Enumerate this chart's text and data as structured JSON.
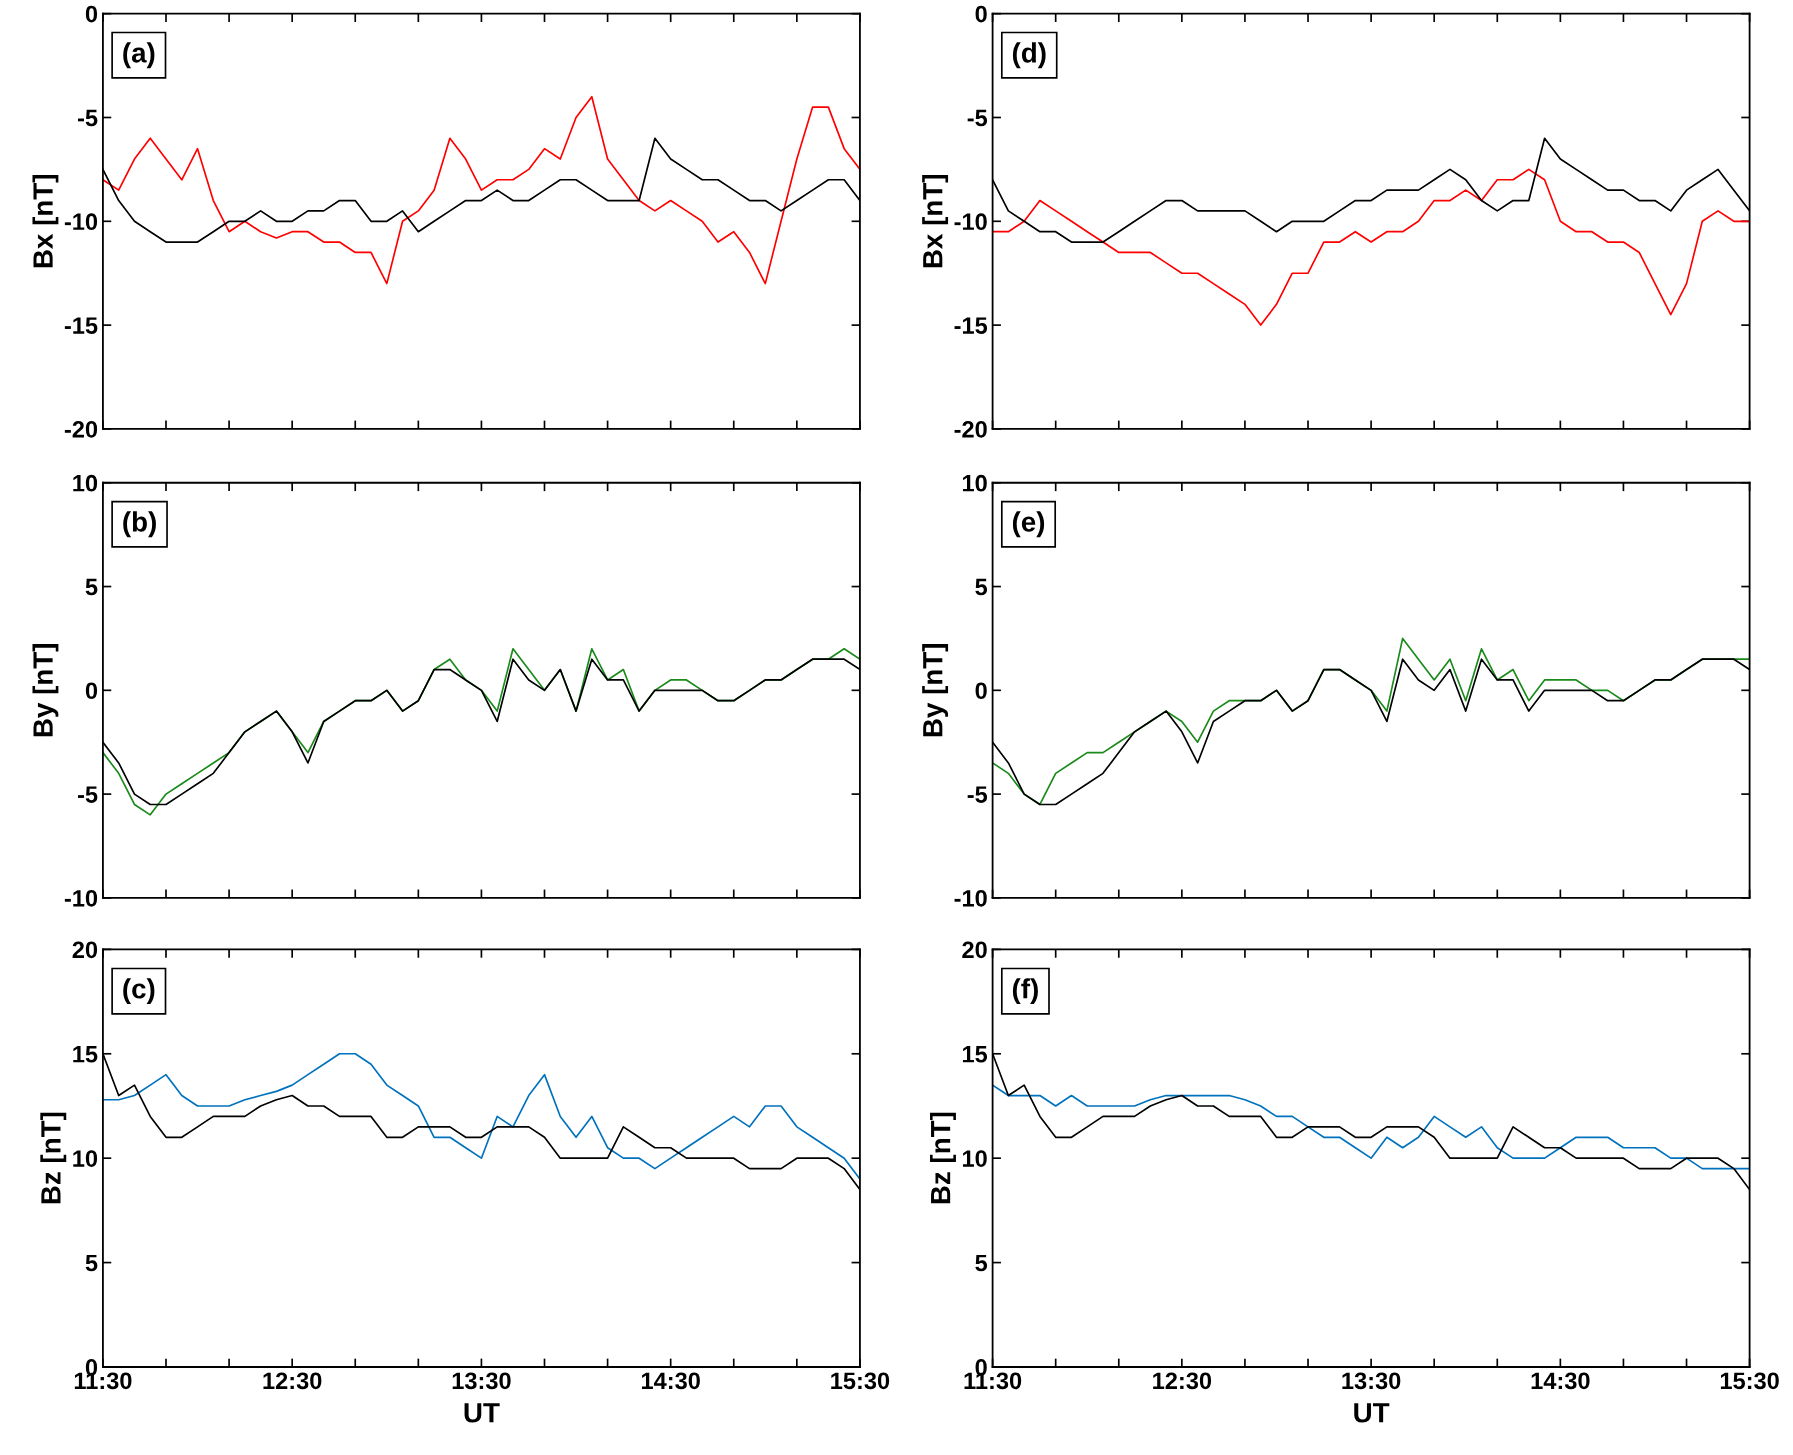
{
  "chart_data": [
    {
      "type": "line",
      "annotations": [
        "(a)"
      ],
      "ylabel": "Bx [nT]",
      "ylim": [
        -20,
        0
      ],
      "yticks": [
        -20,
        -15,
        -10,
        -5,
        0
      ],
      "xlim": [
        11.5,
        15.5
      ],
      "xticks": [
        {
          "value": 11.5,
          "label": null
        },
        {
          "value": 11.8333,
          "label": null
        },
        {
          "value": 12.1667,
          "label": null
        },
        {
          "value": 12.5,
          "label": null
        },
        {
          "value": 12.8333,
          "label": null
        },
        {
          "value": 13.1667,
          "label": null
        },
        {
          "value": 13.5,
          "label": null
        },
        {
          "value": 13.8333,
          "label": null
        },
        {
          "value": 14.1667,
          "label": null
        },
        {
          "value": 14.5,
          "label": null
        },
        {
          "value": 14.8333,
          "label": null
        },
        {
          "value": 15.1667,
          "label": null
        },
        {
          "value": 15.5,
          "label": null
        }
      ],
      "tick_labels": "y",
      "grid": false,
      "legend": false,
      "x": [
        11.5,
        11.5833,
        11.6667,
        11.75,
        11.8333,
        11.9167,
        12.0,
        12.0833,
        12.1667,
        12.25,
        12.3333,
        12.4167,
        12.5,
        12.5833,
        12.6667,
        12.75,
        12.8333,
        12.9167,
        13.0,
        13.0833,
        13.1667,
        13.25,
        13.3333,
        13.4167,
        13.5,
        13.5833,
        13.6667,
        13.75,
        13.8333,
        13.9167,
        14.0,
        14.0833,
        14.1667,
        14.25,
        14.3333,
        14.4167,
        14.5,
        14.5833,
        14.6667,
        14.75,
        14.8333,
        14.9167,
        15.0,
        15.0833,
        15.1667,
        15.25,
        15.3333,
        15.4167,
        15.5
      ],
      "series": [
        {
          "color": "#ff0000",
          "values": [
            -8,
            -8.5,
            -7,
            -6,
            -7,
            -8,
            -6.5,
            -9,
            -10.5,
            -10,
            -10.5,
            -10.8,
            -10.5,
            -10.5,
            -11,
            -11,
            -11.5,
            -11.5,
            -13,
            -10,
            -9.5,
            -8.5,
            -6,
            -7,
            -8.5,
            -8,
            -8,
            -7.5,
            -6.5,
            -7,
            -5,
            -4,
            -7,
            -8,
            -9,
            -9.5,
            -9,
            -9.5,
            -10,
            -11,
            -10.5,
            -11.5,
            -13,
            -10,
            -7,
            -4.5,
            -4.5,
            -6.5,
            -7.5
          ]
        },
        {
          "color": "#000000",
          "values": [
            -7.5,
            -9,
            -10,
            -10.5,
            -11,
            -11,
            -11,
            -10.5,
            -10,
            -10,
            -9.5,
            -10,
            -10,
            -9.5,
            -9.5,
            -9,
            -9,
            -10,
            -10,
            -9.5,
            -10.5,
            -10,
            -9.5,
            -9,
            -9,
            -8.5,
            -9,
            -9,
            -8.5,
            -8,
            -8,
            -8.5,
            -9,
            -9,
            -9,
            -6,
            -7,
            -7.5,
            -8,
            -8,
            -8.5,
            -9,
            -9,
            -9.5,
            -9,
            -8.5,
            -8,
            -8,
            -9
          ]
        }
      ]
    },
    {
      "type": "line",
      "annotations": [
        "(b)"
      ],
      "ylabel": "By [nT]",
      "ylim": [
        -10,
        10
      ],
      "yticks": [
        -10,
        -5,
        0,
        5,
        10
      ],
      "xlim": [
        11.5,
        15.5
      ],
      "xticks": [
        {
          "value": 11.5,
          "label": null
        },
        {
          "value": 11.8333,
          "label": null
        },
        {
          "value": 12.1667,
          "label": null
        },
        {
          "value": 12.5,
          "label": null
        },
        {
          "value": 12.8333,
          "label": null
        },
        {
          "value": 13.1667,
          "label": null
        },
        {
          "value": 13.5,
          "label": null
        },
        {
          "value": 13.8333,
          "label": null
        },
        {
          "value": 14.1667,
          "label": null
        },
        {
          "value": 14.5,
          "label": null
        },
        {
          "value": 14.8333,
          "label": null
        },
        {
          "value": 15.1667,
          "label": null
        },
        {
          "value": 15.5,
          "label": null
        }
      ],
      "tick_labels": "y",
      "grid": false,
      "legend": false,
      "x": [
        11.5,
        11.5833,
        11.6667,
        11.75,
        11.8333,
        11.9167,
        12.0,
        12.0833,
        12.1667,
        12.25,
        12.3333,
        12.4167,
        12.5,
        12.5833,
        12.6667,
        12.75,
        12.8333,
        12.9167,
        13.0,
        13.0833,
        13.1667,
        13.25,
        13.3333,
        13.4167,
        13.5,
        13.5833,
        13.6667,
        13.75,
        13.8333,
        13.9167,
        14.0,
        14.0833,
        14.1667,
        14.25,
        14.3333,
        14.4167,
        14.5,
        14.5833,
        14.6667,
        14.75,
        14.8333,
        14.9167,
        15.0,
        15.0833,
        15.1667,
        15.25,
        15.3333,
        15.4167,
        15.5
      ],
      "series": [
        {
          "color": "#1a8a1a",
          "values": [
            -3,
            -4,
            -5.5,
            -6,
            -5,
            -4.5,
            -4,
            -3.5,
            -3,
            -2,
            -1.5,
            -1,
            -2,
            -3,
            -1.5,
            -1,
            -0.5,
            -0.5,
            0,
            -1,
            -0.5,
            1,
            1.5,
            0.5,
            0,
            -1,
            2,
            1,
            0,
            1,
            -1,
            2,
            0.5,
            1,
            -1,
            0,
            0.5,
            0.5,
            0,
            -0.5,
            -0.5,
            0,
            0.5,
            0.5,
            1,
            1.5,
            1.5,
            2,
            1.5
          ]
        },
        {
          "color": "#000000",
          "values": [
            -2.5,
            -3.5,
            -5,
            -5.5,
            -5.5,
            -5,
            -4.5,
            -4,
            -3,
            -2,
            -1.5,
            -1,
            -2,
            -3.5,
            -1.5,
            -1,
            -0.5,
            -0.5,
            0,
            -1,
            -0.5,
            1,
            1,
            0.5,
            0,
            -1.5,
            1.5,
            0.5,
            0,
            1,
            -1,
            1.5,
            0.5,
            0.5,
            -1,
            0,
            0,
            0,
            0,
            -0.5,
            -0.5,
            0,
            0.5,
            0.5,
            1,
            1.5,
            1.5,
            1.5,
            1
          ]
        }
      ]
    },
    {
      "type": "line",
      "annotations": [
        "(c)"
      ],
      "ylabel": "Bz [nT]",
      "xlabel": "UT",
      "ylim": [
        0,
        20
      ],
      "yticks": [
        0,
        5,
        10,
        15,
        20
      ],
      "xlim": [
        11.5,
        15.5
      ],
      "xticks": [
        {
          "value": 11.5,
          "label": "11:30"
        },
        {
          "value": 11.8333,
          "label": null
        },
        {
          "value": 12.1667,
          "label": null
        },
        {
          "value": 12.5,
          "label": "12:30"
        },
        {
          "value": 12.8333,
          "label": null
        },
        {
          "value": 13.1667,
          "label": null
        },
        {
          "value": 13.5,
          "label": "13:30"
        },
        {
          "value": 13.8333,
          "label": null
        },
        {
          "value": 14.1667,
          "label": null
        },
        {
          "value": 14.5,
          "label": "14:30"
        },
        {
          "value": 14.8333,
          "label": null
        },
        {
          "value": 15.1667,
          "label": null
        },
        {
          "value": 15.5,
          "label": "15:30"
        }
      ],
      "grid": false,
      "legend": false,
      "x": [
        11.5,
        11.5833,
        11.6667,
        11.75,
        11.8333,
        11.9167,
        12.0,
        12.0833,
        12.1667,
        12.25,
        12.3333,
        12.4167,
        12.5,
        12.5833,
        12.6667,
        12.75,
        12.8333,
        12.9167,
        13.0,
        13.0833,
        13.1667,
        13.25,
        13.3333,
        13.4167,
        13.5,
        13.5833,
        13.6667,
        13.75,
        13.8333,
        13.9167,
        14.0,
        14.0833,
        14.1667,
        14.25,
        14.3333,
        14.4167,
        14.5,
        14.5833,
        14.6667,
        14.75,
        14.8333,
        14.9167,
        15.0,
        15.0833,
        15.1667,
        15.25,
        15.3333,
        15.4167,
        15.5
      ],
      "series": [
        {
          "color": "#0072bd",
          "values": [
            12.8,
            12.8,
            13,
            13.5,
            14,
            13,
            12.5,
            12.5,
            12.5,
            12.8,
            13,
            13.2,
            13.5,
            14,
            14.5,
            15,
            15,
            14.5,
            13.5,
            13,
            12.5,
            11,
            11,
            10.5,
            10,
            12,
            11.5,
            13,
            14,
            12,
            11,
            12,
            10.5,
            10,
            10,
            9.5,
            10,
            10.5,
            11,
            11.5,
            12,
            11.5,
            12.5,
            12.5,
            11.5,
            11,
            10.5,
            10,
            9
          ]
        },
        {
          "color": "#000000",
          "values": [
            15,
            13,
            13.5,
            12,
            11,
            11,
            11.5,
            12,
            12,
            12,
            12.5,
            12.8,
            13,
            12.5,
            12.5,
            12,
            12,
            12,
            11,
            11,
            11.5,
            11.5,
            11.5,
            11,
            11,
            11.5,
            11.5,
            11.5,
            11,
            10,
            10,
            10,
            10,
            11.5,
            11,
            10.5,
            10.5,
            10,
            10,
            10,
            10,
            9.5,
            9.5,
            9.5,
            10,
            10,
            10,
            9.5,
            8.5
          ]
        }
      ]
    },
    {
      "type": "line",
      "annotations": [
        "(d)"
      ],
      "ylabel": "Bx [nT]",
      "ylim": [
        -20,
        0
      ],
      "yticks": [
        -20,
        -15,
        -10,
        -5,
        0
      ],
      "xlim": [
        11.5,
        15.5
      ],
      "xticks": [
        {
          "value": 11.5,
          "label": null
        },
        {
          "value": 11.8333,
          "label": null
        },
        {
          "value": 12.1667,
          "label": null
        },
        {
          "value": 12.5,
          "label": null
        },
        {
          "value": 12.8333,
          "label": null
        },
        {
          "value": 13.1667,
          "label": null
        },
        {
          "value": 13.5,
          "label": null
        },
        {
          "value": 13.8333,
          "label": null
        },
        {
          "value": 14.1667,
          "label": null
        },
        {
          "value": 14.5,
          "label": null
        },
        {
          "value": 14.8333,
          "label": null
        },
        {
          "value": 15.1667,
          "label": null
        },
        {
          "value": 15.5,
          "label": null
        }
      ],
      "tick_labels": "y",
      "grid": false,
      "legend": false,
      "x": [
        11.5,
        11.5833,
        11.6667,
        11.75,
        11.8333,
        11.9167,
        12.0,
        12.0833,
        12.1667,
        12.25,
        12.3333,
        12.4167,
        12.5,
        12.5833,
        12.6667,
        12.75,
        12.8333,
        12.9167,
        13.0,
        13.0833,
        13.1667,
        13.25,
        13.3333,
        13.4167,
        13.5,
        13.5833,
        13.6667,
        13.75,
        13.8333,
        13.9167,
        14.0,
        14.0833,
        14.1667,
        14.25,
        14.3333,
        14.4167,
        14.5,
        14.5833,
        14.6667,
        14.75,
        14.8333,
        14.9167,
        15.0,
        15.0833,
        15.1667,
        15.25,
        15.3333,
        15.4167,
        15.5
      ],
      "series": [
        {
          "color": "#ff0000",
          "values": [
            -10.5,
            -10.5,
            -10,
            -9,
            -9.5,
            -10,
            -10.5,
            -11,
            -11.5,
            -11.5,
            -11.5,
            -12,
            -12.5,
            -12.5,
            -13,
            -13.5,
            -14,
            -15,
            -14,
            -12.5,
            -12.5,
            -11,
            -11,
            -10.5,
            -11,
            -10.5,
            -10.5,
            -10,
            -9,
            -9,
            -8.5,
            -9,
            -8,
            -8,
            -7.5,
            -8,
            -10,
            -10.5,
            -10.5,
            -11,
            -11,
            -11.5,
            -13,
            -14.5,
            -13,
            -10,
            -9.5,
            -10,
            -10
          ]
        },
        {
          "color": "#000000",
          "values": [
            -8,
            -9.5,
            -10,
            -10.5,
            -10.5,
            -11,
            -11,
            -11,
            -10.5,
            -10,
            -9.5,
            -9,
            -9,
            -9.5,
            -9.5,
            -9.5,
            -9.5,
            -10,
            -10.5,
            -10,
            -10,
            -10,
            -9.5,
            -9,
            -9,
            -8.5,
            -8.5,
            -8.5,
            -8,
            -7.5,
            -8,
            -9,
            -9.5,
            -9,
            -9,
            -6,
            -7,
            -7.5,
            -8,
            -8.5,
            -8.5,
            -9,
            -9,
            -9.5,
            -8.5,
            -8,
            -7.5,
            -8.5,
            -9.5
          ]
        }
      ]
    },
    {
      "type": "line",
      "annotations": [
        "(e)"
      ],
      "ylabel": "By [nT]",
      "ylim": [
        -10,
        10
      ],
      "yticks": [
        -10,
        -5,
        0,
        5,
        10
      ],
      "xlim": [
        11.5,
        15.5
      ],
      "xticks": [
        {
          "value": 11.5,
          "label": null
        },
        {
          "value": 11.8333,
          "label": null
        },
        {
          "value": 12.1667,
          "label": null
        },
        {
          "value": 12.5,
          "label": null
        },
        {
          "value": 12.8333,
          "label": null
        },
        {
          "value": 13.1667,
          "label": null
        },
        {
          "value": 13.5,
          "label": null
        },
        {
          "value": 13.8333,
          "label": null
        },
        {
          "value": 14.1667,
          "label": null
        },
        {
          "value": 14.5,
          "label": null
        },
        {
          "value": 14.8333,
          "label": null
        },
        {
          "value": 15.1667,
          "label": null
        },
        {
          "value": 15.5,
          "label": null
        }
      ],
      "tick_labels": "y",
      "grid": false,
      "legend": false,
      "x": [
        11.5,
        11.5833,
        11.6667,
        11.75,
        11.8333,
        11.9167,
        12.0,
        12.0833,
        12.1667,
        12.25,
        12.3333,
        12.4167,
        12.5,
        12.5833,
        12.6667,
        12.75,
        12.8333,
        12.9167,
        13.0,
        13.0833,
        13.1667,
        13.25,
        13.3333,
        13.4167,
        13.5,
        13.5833,
        13.6667,
        13.75,
        13.8333,
        13.9167,
        14.0,
        14.0833,
        14.1667,
        14.25,
        14.3333,
        14.4167,
        14.5,
        14.5833,
        14.6667,
        14.75,
        14.8333,
        14.9167,
        15.0,
        15.0833,
        15.1667,
        15.25,
        15.3333,
        15.4167,
        15.5
      ],
      "series": [
        {
          "color": "#1a8a1a",
          "values": [
            -3.5,
            -4,
            -5,
            -5.5,
            -4,
            -3.5,
            -3,
            -3,
            -2.5,
            -2,
            -1.5,
            -1,
            -1.5,
            -2.5,
            -1,
            -0.5,
            -0.5,
            -0.5,
            0,
            -1,
            -0.5,
            1,
            1,
            0.5,
            0,
            -1,
            2.5,
            1.5,
            0.5,
            1.5,
            -0.5,
            2,
            0.5,
            1,
            -0.5,
            0.5,
            0.5,
            0.5,
            0,
            0,
            -0.5,
            0,
            0.5,
            0.5,
            1,
            1.5,
            1.5,
            1.5,
            1.5
          ]
        },
        {
          "color": "#000000",
          "values": [
            -2.5,
            -3.5,
            -5,
            -5.5,
            -5.5,
            -5,
            -4.5,
            -4,
            -3,
            -2,
            -1.5,
            -1,
            -2,
            -3.5,
            -1.5,
            -1,
            -0.5,
            -0.5,
            0,
            -1,
            -0.5,
            1,
            1,
            0.5,
            0,
            -1.5,
            1.5,
            0.5,
            0,
            1,
            -1,
            1.5,
            0.5,
            0.5,
            -1,
            0,
            0,
            0,
            0,
            -0.5,
            -0.5,
            0,
            0.5,
            0.5,
            1,
            1.5,
            1.5,
            1.5,
            1
          ]
        }
      ]
    },
    {
      "type": "line",
      "annotations": [
        "(f)"
      ],
      "ylabel": "Bz [nT]",
      "xlabel": "UT",
      "ylim": [
        0,
        20
      ],
      "yticks": [
        0,
        5,
        10,
        15,
        20
      ],
      "xlim": [
        11.5,
        15.5
      ],
      "xticks": [
        {
          "value": 11.5,
          "label": "11:30"
        },
        {
          "value": 11.8333,
          "label": null
        },
        {
          "value": 12.1667,
          "label": null
        },
        {
          "value": 12.5,
          "label": "12:30"
        },
        {
          "value": 12.8333,
          "label": null
        },
        {
          "value": 13.1667,
          "label": null
        },
        {
          "value": 13.5,
          "label": "13:30"
        },
        {
          "value": 13.8333,
          "label": null
        },
        {
          "value": 14.1667,
          "label": null
        },
        {
          "value": 14.5,
          "label": "14:30"
        },
        {
          "value": 14.8333,
          "label": null
        },
        {
          "value": 15.1667,
          "label": null
        },
        {
          "value": 15.5,
          "label": "15:30"
        }
      ],
      "grid": false,
      "legend": false,
      "x": [
        11.5,
        11.5833,
        11.6667,
        11.75,
        11.8333,
        11.9167,
        12.0,
        12.0833,
        12.1667,
        12.25,
        12.3333,
        12.4167,
        12.5,
        12.5833,
        12.6667,
        12.75,
        12.8333,
        12.9167,
        13.0,
        13.0833,
        13.1667,
        13.25,
        13.3333,
        13.4167,
        13.5,
        13.5833,
        13.6667,
        13.75,
        13.8333,
        13.9167,
        14.0,
        14.0833,
        14.1667,
        14.25,
        14.3333,
        14.4167,
        14.5,
        14.5833,
        14.6667,
        14.75,
        14.8333,
        14.9167,
        15.0,
        15.0833,
        15.1667,
        15.25,
        15.3333,
        15.4167,
        15.5
      ],
      "series": [
        {
          "color": "#0072bd",
          "values": [
            13.5,
            13,
            13,
            13,
            12.5,
            13,
            12.5,
            12.5,
            12.5,
            12.5,
            12.8,
            13,
            13,
            13,
            13,
            13,
            12.8,
            12.5,
            12,
            12,
            11.5,
            11,
            11,
            10.5,
            10,
            11,
            10.5,
            11,
            12,
            11.5,
            11,
            11.5,
            10.5,
            10,
            10,
            10,
            10.5,
            11,
            11,
            11,
            10.5,
            10.5,
            10.5,
            10,
            10,
            9.5,
            9.5,
            9.5,
            9.5
          ]
        },
        {
          "color": "#000000",
          "values": [
            15,
            13,
            13.5,
            12,
            11,
            11,
            11.5,
            12,
            12,
            12,
            12.5,
            12.8,
            13,
            12.5,
            12.5,
            12,
            12,
            12,
            11,
            11,
            11.5,
            11.5,
            11.5,
            11,
            11,
            11.5,
            11.5,
            11.5,
            11,
            10,
            10,
            10,
            10,
            11.5,
            11,
            10.5,
            10.5,
            10,
            10,
            10,
            10,
            9.5,
            9.5,
            9.5,
            10,
            10,
            10,
            9.5,
            8.5
          ]
        }
      ]
    }
  ]
}
